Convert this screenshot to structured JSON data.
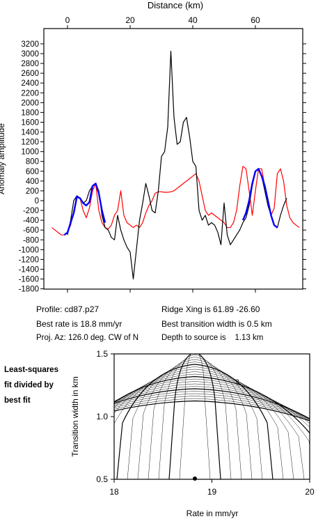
{
  "info": {
    "profile": "Profile: cd87.p27",
    "best_rate": "Best rate is 18.8 mm/yr",
    "proj_az": "Proj. Az: 126.0 deg. CW of N",
    "ridge_xing": "Ridge Xing is 61.89 -26.60",
    "best_width": "Best transition width is 0.5 km",
    "depth": "Depth to source is    1.13 km"
  },
  "side_label": [
    "Least-squares",
    "fit divided by",
    "best fit"
  ],
  "colors": {
    "observed": "#000000",
    "model": "#ff0000",
    "fit_window": "#0000ff"
  },
  "chart_data": [
    {
      "type": "line",
      "xlabel": "Distance (km)",
      "ylabel": "Anomaly amplitude",
      "xlim": [
        -3,
        74
      ],
      "ylim": [
        -1800,
        3200
      ],
      "xticks": [
        0,
        20,
        40,
        60
      ],
      "yticks": [
        -1800,
        -1600,
        -1400,
        -1200,
        -1000,
        -800,
        -600,
        -400,
        -200,
        0,
        200,
        400,
        600,
        800,
        1000,
        1200,
        1400,
        1600,
        1800,
        2000,
        2200,
        2400,
        2600,
        2800,
        3000,
        3200
      ],
      "series": [
        {
          "role": "observed",
          "color": "#000000",
          "x": [
            0,
            1,
            2,
            3,
            4,
            5,
            6,
            7,
            8,
            9,
            10,
            11,
            12,
            13,
            14,
            15,
            16,
            17,
            18,
            19,
            20,
            21,
            22,
            23,
            24,
            25,
            26,
            27,
            28,
            29,
            30,
            31,
            32,
            33,
            34,
            35,
            36,
            37,
            38,
            39,
            40,
            41,
            42,
            43,
            44,
            45,
            46,
            47,
            48,
            49,
            50,
            51,
            52,
            53,
            54,
            55,
            56,
            57,
            58,
            59,
            60,
            61,
            62,
            63,
            64,
            65,
            66,
            67,
            68,
            69,
            70
          ],
          "y": [
            -700,
            -400,
            0,
            100,
            50,
            -50,
            0,
            200,
            300,
            350,
            200,
            -300,
            -550,
            -600,
            -750,
            -800,
            -300,
            -600,
            -800,
            -950,
            -1050,
            -1600,
            -1000,
            -400,
            -50,
            350,
            100,
            -200,
            -250,
            200,
            900,
            1000,
            1500,
            3050,
            1700,
            1150,
            1200,
            1600,
            1700,
            1300,
            800,
            700,
            -200,
            -400,
            -300,
            -500,
            -450,
            -500,
            -650,
            -900,
            -50,
            -700,
            -900,
            -800,
            -700,
            -600,
            -450,
            -350,
            -100,
            300,
            600,
            650,
            500,
            200,
            -100,
            -300,
            -500,
            -550,
            -300,
            -100,
            50
          ]
        },
        {
          "role": "model",
          "color": "#ff0000",
          "x": [
            -5,
            -4,
            -3,
            -2,
            -1,
            0,
            1,
            2,
            3,
            4,
            5,
            6,
            7,
            8,
            9,
            10,
            11,
            12,
            13,
            14,
            15,
            16,
            17,
            18,
            19,
            20,
            21,
            22,
            23,
            24,
            25,
            26,
            27,
            28,
            29,
            30,
            31,
            32,
            33,
            34,
            35,
            36,
            37,
            38,
            39,
            40,
            41,
            42,
            43,
            44,
            45,
            46,
            47,
            48,
            49,
            50,
            51,
            52,
            53,
            54,
            55,
            56,
            57,
            58,
            59,
            60,
            61,
            62,
            63,
            64,
            65,
            66,
            67,
            68,
            69,
            70,
            71,
            72,
            73,
            74
          ],
          "y": [
            -550,
            -600,
            -650,
            -700,
            -700,
            -650,
            -500,
            -200,
            100,
            50,
            -200,
            -350,
            -150,
            200,
            350,
            -200,
            -450,
            -550,
            -580,
            -500,
            -300,
            -200,
            200,
            -300,
            -450,
            -500,
            -550,
            -500,
            -550,
            -450,
            -250,
            -100,
            0,
            150,
            180,
            180,
            170,
            170,
            180,
            200,
            250,
            300,
            350,
            400,
            450,
            500,
            550,
            400,
            100,
            -200,
            -300,
            -250,
            -300,
            -350,
            -400,
            -450,
            -550,
            -550,
            -450,
            -200,
            300,
            700,
            650,
            200,
            -300,
            200,
            650,
            650,
            300,
            -100,
            -300,
            -150,
            550,
            650,
            400,
            -100,
            -350,
            -450,
            -500,
            -550
          ]
        },
        {
          "role": "fit_window",
          "color": "#0000ff",
          "x": [
            -1,
            0,
            1,
            2,
            3,
            4,
            5,
            6,
            7,
            8,
            9,
            10,
            11,
            12,
            56,
            57,
            58,
            59,
            60,
            61,
            62,
            63,
            64,
            65,
            66,
            67
          ],
          "y": [
            -700,
            -650,
            -450,
            -250,
            80,
            50,
            -50,
            -100,
            -30,
            300,
            350,
            150,
            -200,
            -450,
            -400,
            -250,
            0,
            350,
            600,
            650,
            500,
            300,
            0,
            -300,
            -500,
            -550
          ]
        }
      ]
    },
    {
      "type": "contour",
      "xlabel": "Rate in mm/yr",
      "ylabel": "Transition width in km",
      "xlim": [
        18,
        20
      ],
      "ylim": [
        0.5,
        1.5
      ],
      "xticks": [
        18,
        19,
        20
      ],
      "yticks": [
        0.5,
        1.0,
        1.5
      ],
      "contour_label": "2",
      "best_fit": {
        "rate": 18.8,
        "width": 0.5
      }
    }
  ]
}
